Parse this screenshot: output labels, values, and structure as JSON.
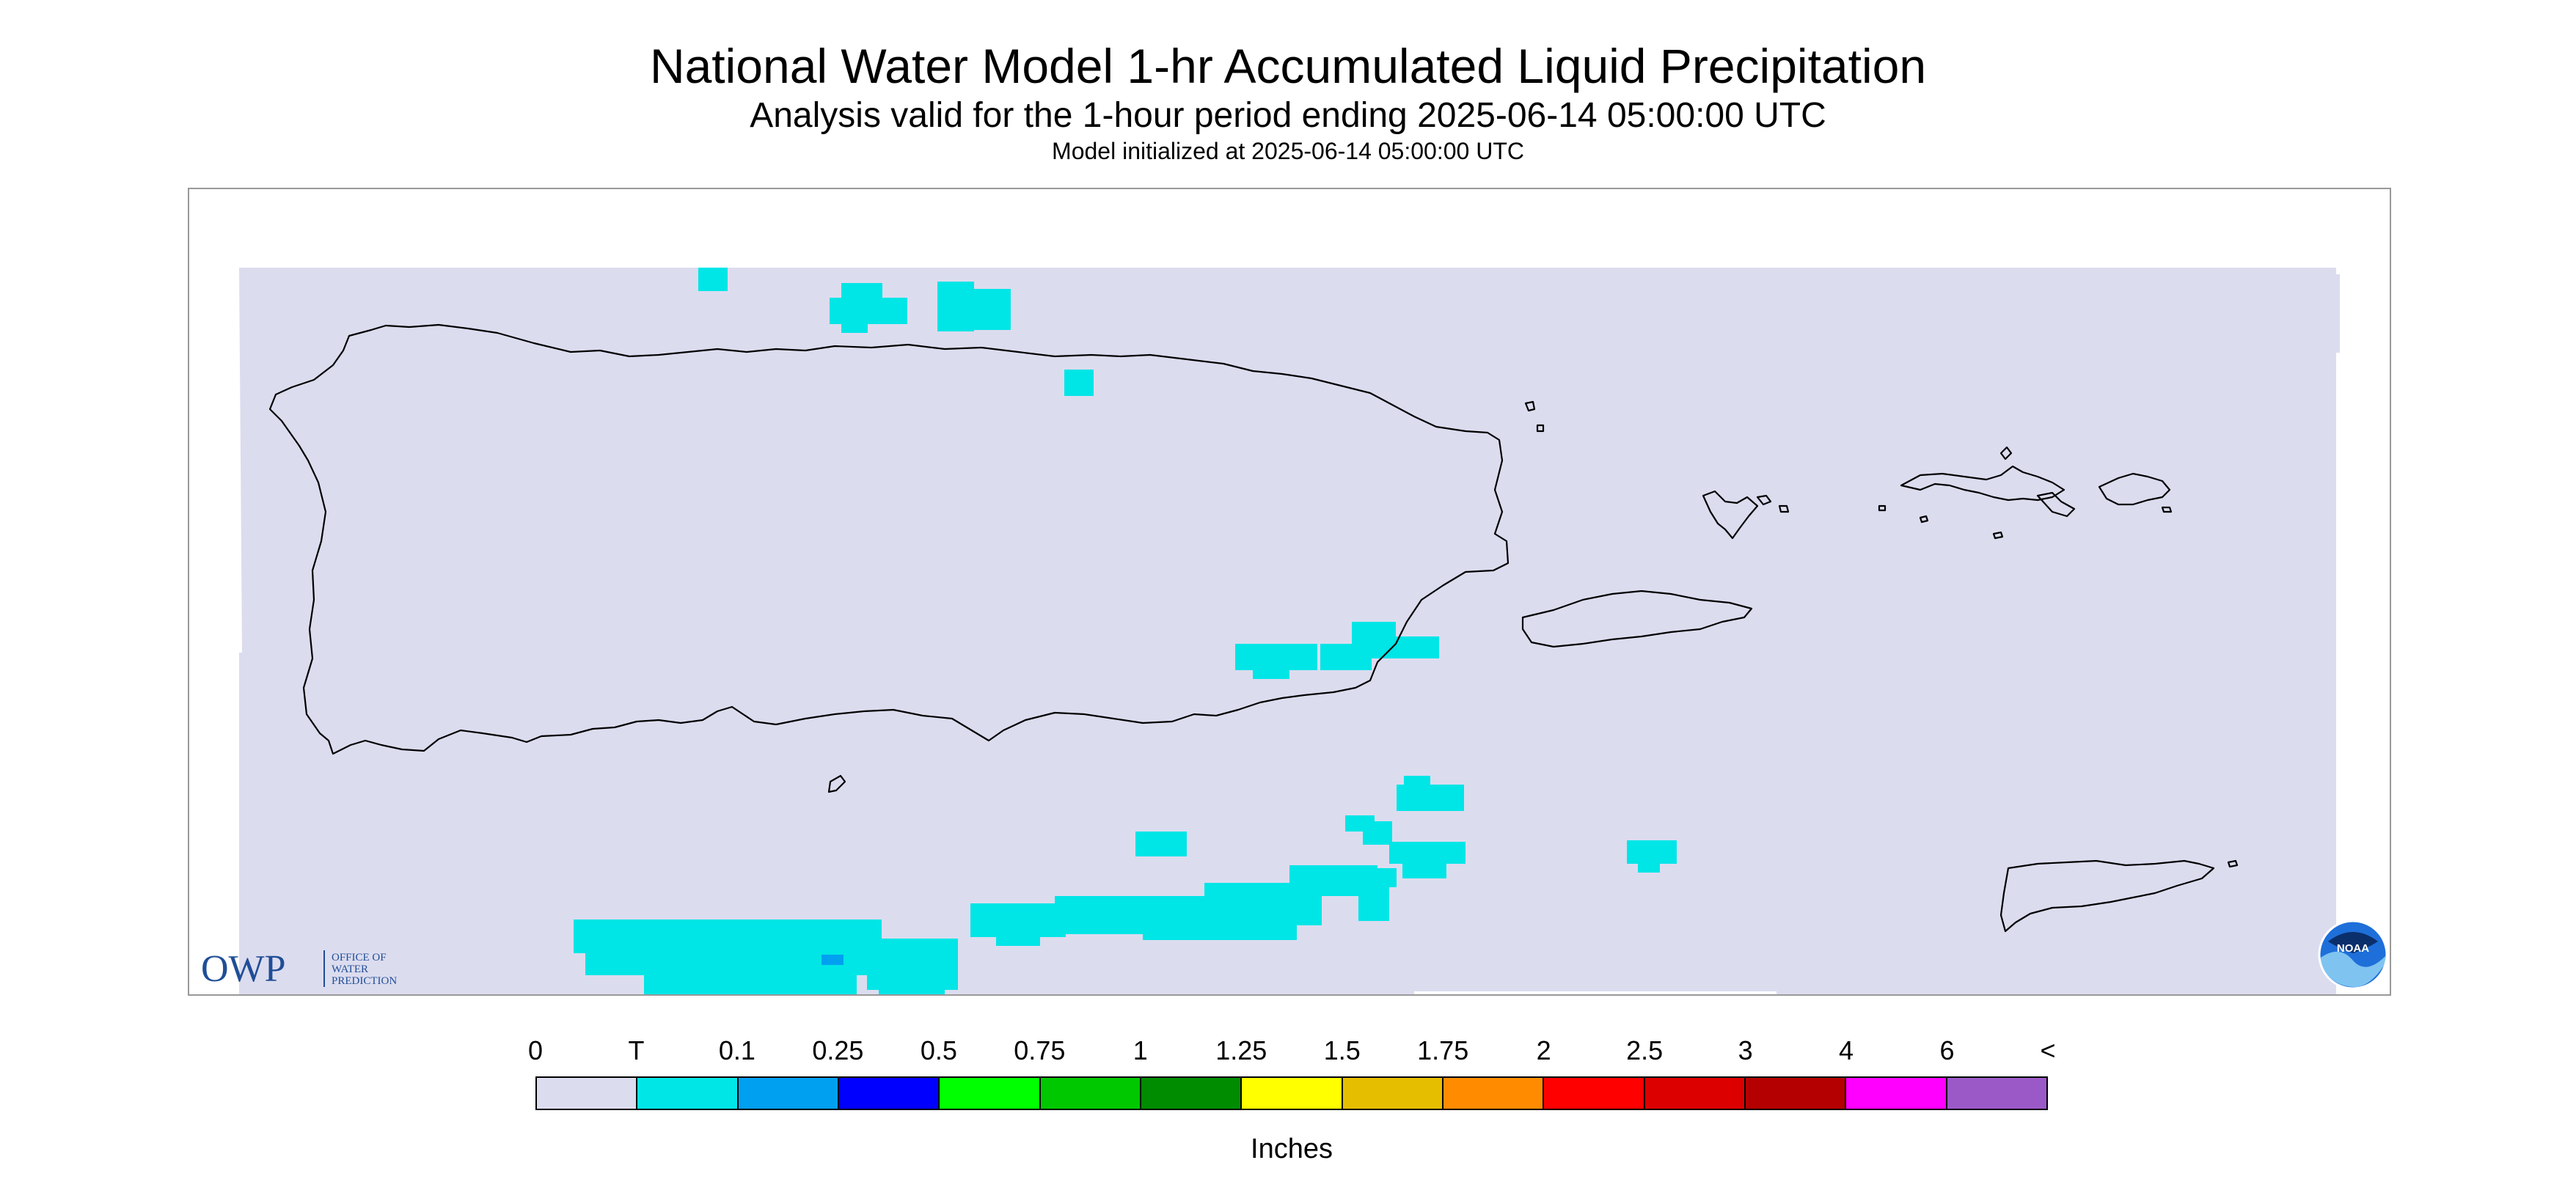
{
  "title": "National Water Model 1-hr Accumulated Liquid Precipitation",
  "subtitle": "Analysis valid for the 1-hour period ending 2025-06-14 05:00:00 UTC",
  "init_text": "Model initialized at 2025-06-14 05:00:00 UTC",
  "map": {
    "background_color": "#dcdcef",
    "coast_color": "#000000",
    "precip_colors": {
      "T": "#00e5e6",
      "0.1": "#00a0f0"
    }
  },
  "logos": {
    "owp": {
      "mark": "OWP",
      "text": [
        "OFFICE OF",
        "WATER",
        "PREDICTION"
      ]
    },
    "noaa": {
      "text": "NOAA"
    }
  },
  "legend": {
    "ticks": [
      "0",
      "T",
      "0.1",
      "0.25",
      "0.5",
      "0.75",
      "1",
      "1.25",
      "1.5",
      "1.75",
      "2",
      "2.5",
      "3",
      "4",
      "6",
      "<"
    ],
    "colors": [
      "#dcdcef",
      "#00e5e6",
      "#00a0f0",
      "#0000ff",
      "#00ff00",
      "#00c800",
      "#008c00",
      "#ffff00",
      "#e6be00",
      "#ff8c00",
      "#ff0000",
      "#dc0000",
      "#b40000",
      "#ff00ff",
      "#9b59c8"
    ],
    "units": "Inches"
  }
}
